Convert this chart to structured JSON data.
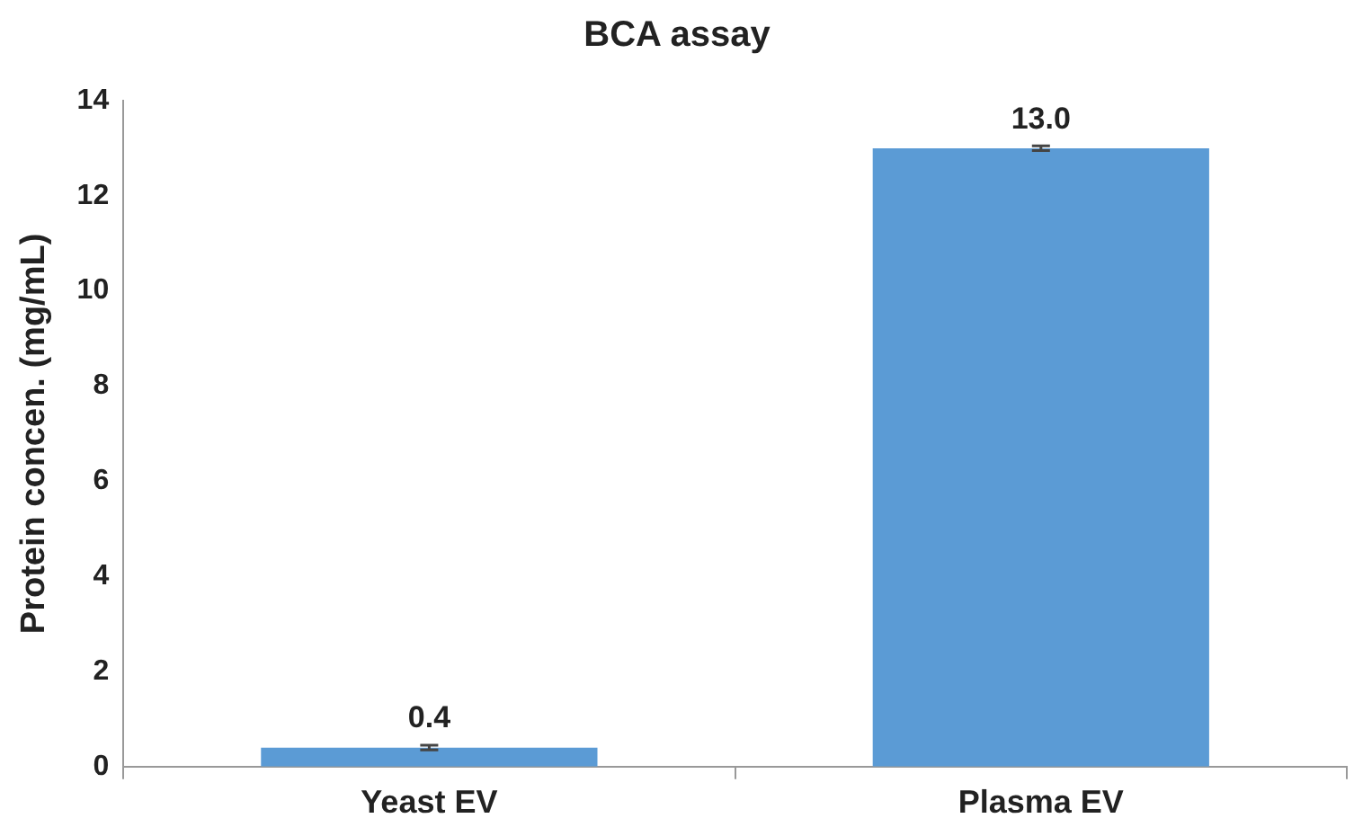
{
  "chart_data": {
    "type": "bar",
    "title": "BCA assay",
    "ylabel": "Protein concen. (mg/mL)",
    "categories": [
      "Yeast EV",
      "Plasma EV"
    ],
    "series": [
      {
        "color": "#5b9bd5",
        "values": [
          0.4,
          13.0
        ],
        "errors": [
          0.05,
          0.05
        ],
        "value_labels": [
          "0.4",
          "13.0"
        ]
      }
    ],
    "ylim": [
      0,
      14
    ],
    "yticks": [
      0,
      2,
      4,
      6,
      8,
      10,
      12,
      14
    ],
    "grid": false,
    "legend": false
  }
}
